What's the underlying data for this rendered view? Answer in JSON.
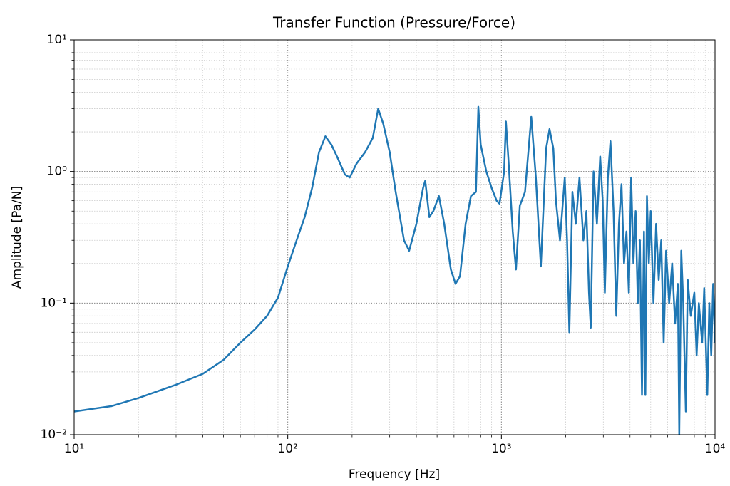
{
  "chart_data": {
    "type": "line",
    "title": "Transfer Function (Pressure/Force)",
    "x_label": "Frequency [Hz]",
    "y_label": "Amplitude [Pa/N]",
    "x_scale": "log",
    "y_scale": "log",
    "grid": true,
    "minor_grid": true,
    "xlim": [
      10,
      10000
    ],
    "ylim": [
      0.01,
      10
    ],
    "xticks": [
      {
        "value": 10,
        "label": "10¹"
      },
      {
        "value": 100,
        "label": "10²"
      },
      {
        "value": 1000,
        "label": "10³"
      },
      {
        "value": 10000,
        "label": "10⁴"
      }
    ],
    "yticks": [
      {
        "value": 0.01,
        "label": "10⁻²"
      },
      {
        "value": 0.1,
        "label": "10⁻¹"
      },
      {
        "value": 1,
        "label": "10⁰"
      },
      {
        "value": 10,
        "label": "10¹"
      }
    ],
    "x": [
      10,
      15,
      20,
      30,
      40,
      50,
      60,
      70,
      80,
      90,
      100,
      110,
      120,
      130,
      140,
      150,
      160,
      170,
      185,
      195,
      210,
      230,
      250,
      265,
      280,
      300,
      320,
      350,
      370,
      400,
      430,
      440,
      460,
      480,
      510,
      540,
      580,
      610,
      640,
      680,
      720,
      760,
      780,
      800,
      850,
      900,
      950,
      980,
      1030,
      1050,
      1080,
      1130,
      1170,
      1220,
      1290,
      1380,
      1450,
      1530,
      1620,
      1680,
      1750,
      1800,
      1880,
      1980,
      2030,
      2080,
      2150,
      2230,
      2320,
      2420,
      2500,
      2570,
      2620,
      2700,
      2800,
      2900,
      2980,
      3050,
      3150,
      3240,
      3350,
      3450,
      3550,
      3650,
      3750,
      3850,
      3950,
      4050,
      4150,
      4250,
      4350,
      4450,
      4550,
      4650,
      4720,
      4800,
      4900,
      5000,
      5150,
      5300,
      5450,
      5600,
      5750,
      5900,
      6100,
      6300,
      6500,
      6700,
      6800,
      6950,
      7100,
      7300,
      7450,
      7700,
      8000,
      8200,
      8400,
      8700,
      8900,
      9200,
      9400,
      9600,
      9800,
      10000
    ],
    "series": [
      {
        "color": "#1f77b4",
        "values": [
          0.015,
          0.0165,
          0.019,
          0.024,
          0.029,
          0.037,
          0.05,
          0.063,
          0.08,
          0.11,
          0.19,
          0.3,
          0.45,
          0.75,
          1.4,
          1.85,
          1.6,
          1.3,
          0.95,
          0.9,
          1.15,
          1.4,
          1.8,
          3.0,
          2.3,
          1.4,
          0.7,
          0.3,
          0.25,
          0.4,
          0.75,
          0.85,
          0.45,
          0.5,
          0.65,
          0.4,
          0.18,
          0.14,
          0.16,
          0.4,
          0.65,
          0.7,
          3.1,
          1.6,
          1.0,
          0.75,
          0.6,
          0.57,
          1.0,
          2.4,
          1.2,
          0.35,
          0.18,
          0.55,
          0.7,
          2.6,
          0.9,
          0.19,
          1.5,
          2.1,
          1.5,
          0.6,
          0.3,
          0.9,
          0.3,
          0.06,
          0.7,
          0.4,
          0.9,
          0.3,
          0.5,
          0.12,
          0.065,
          1.0,
          0.4,
          1.3,
          0.6,
          0.12,
          0.9,
          1.7,
          0.5,
          0.08,
          0.4,
          0.8,
          0.2,
          0.35,
          0.12,
          0.9,
          0.2,
          0.5,
          0.1,
          0.3,
          0.02,
          0.35,
          0.02,
          0.65,
          0.2,
          0.5,
          0.1,
          0.4,
          0.15,
          0.3,
          0.05,
          0.25,
          0.1,
          0.2,
          0.07,
          0.14,
          0.01,
          0.25,
          0.1,
          0.015,
          0.15,
          0.08,
          0.12,
          0.04,
          0.1,
          0.05,
          0.13,
          0.02,
          0.1,
          0.04,
          0.14,
          0.05
        ]
      }
    ]
  }
}
